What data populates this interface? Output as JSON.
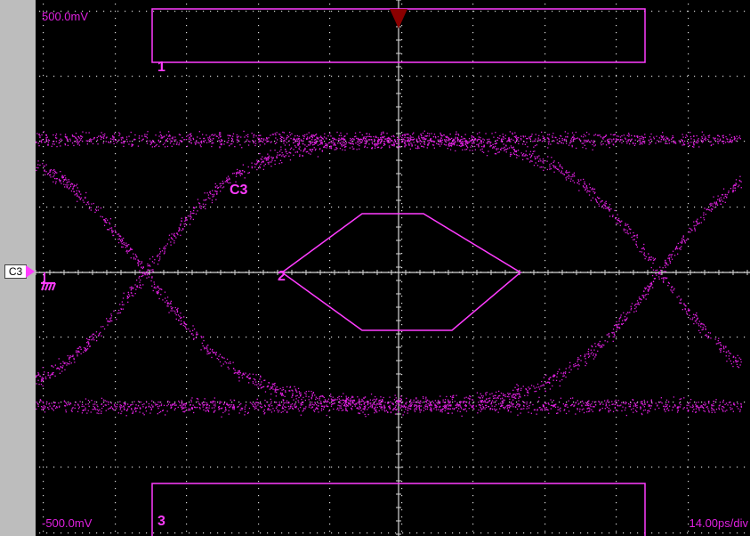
{
  "scope": {
    "vscale_top": "500.0mV",
    "vscale_bottom": "-500.0mV",
    "timebase": "14.00ps/div",
    "channel_marker": "C3",
    "trace_label": "C3",
    "masks": [
      {
        "label": "1"
      },
      {
        "label": "2"
      },
      {
        "label": "3"
      }
    ]
  },
  "colors": {
    "trace": "#e020e0",
    "mask": "#ff3cff",
    "grid": "#d8d8d8",
    "trigger": "#8b0000",
    "background": "#000000",
    "sidebar": "#bdbdbd"
  },
  "icons": [
    "ground-icon",
    "trigger-marker-icon",
    "channel-marker-icon"
  ]
}
